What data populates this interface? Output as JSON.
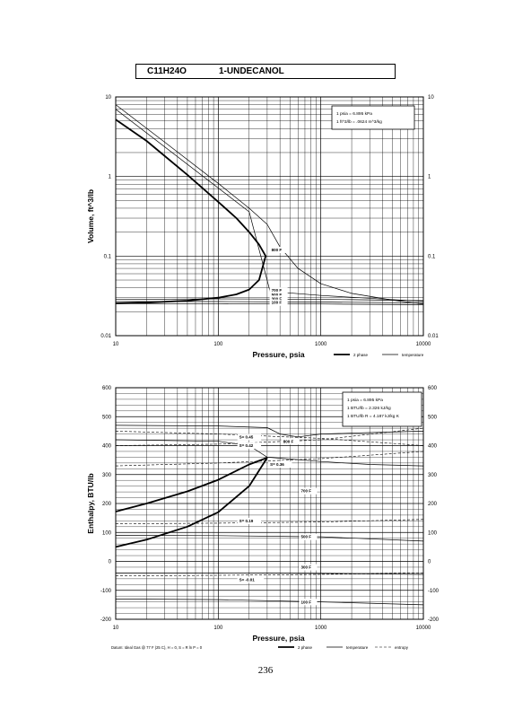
{
  "header": {
    "formula": "C11H24O",
    "name": "1-UNDECANOL"
  },
  "page_number": "236",
  "chart_data": [
    {
      "type": "line",
      "xlabel": "Pressure,  psia",
      "ylabel": "Volume, ft^3/lb",
      "xscale": "log",
      "yscale": "log",
      "xlim": [
        10,
        10000
      ],
      "ylim": [
        0.01,
        10
      ],
      "x_ticks": [
        "10",
        "100",
        "1000",
        "10000"
      ],
      "y_ticks": [
        "0.01",
        "0.1",
        "1",
        "10"
      ],
      "y_ticks_right": [
        "0.01",
        "0.1",
        "1",
        "10"
      ],
      "grid": true,
      "legend": [
        {
          "label": "2 phase",
          "style": "thick"
        },
        {
          "label": "temperature",
          "style": "thin"
        }
      ],
      "conversions": [
        "1 psia  =  6.895 kPa",
        "1 ft^3/lb  =  .0624 m^3/kg"
      ],
      "series": [
        {
          "kind": "2 phase",
          "style": "thick",
          "role": "vapor",
          "x": [
            10,
            20,
            50,
            100,
            150,
            200,
            250,
            290
          ],
          "y": [
            5.2,
            2.8,
            1.05,
            0.48,
            0.3,
            0.2,
            0.14,
            0.1
          ]
        },
        {
          "kind": "2 phase",
          "style": "thick",
          "role": "liquid",
          "x": [
            10,
            20,
            50,
            100,
            150,
            200,
            250,
            290
          ],
          "y": [
            0.0255,
            0.026,
            0.0275,
            0.03,
            0.033,
            0.038,
            0.05,
            0.1
          ]
        },
        {
          "kind": "temperature",
          "label": "800 F",
          "style": "thin",
          "x": [
            10,
            30,
            100,
            200,
            300,
            400,
            600,
            1000,
            2000,
            5000,
            10000
          ],
          "y": [
            8,
            2.7,
            0.82,
            0.4,
            0.25,
            0.13,
            0.07,
            0.045,
            0.034,
            0.028,
            0.025
          ]
        },
        {
          "kind": "temperature",
          "label": "700 F",
          "style": "thin",
          "x": [
            10,
            200,
            320,
            1000,
            10000
          ],
          "y": [
            7,
            0.36,
            0.036,
            0.032,
            0.027
          ]
        },
        {
          "kind": "temperature",
          "label": "500 F",
          "style": "thin",
          "x": [
            10,
            100,
            500,
            2000,
            10000
          ],
          "y": [
            0.0285,
            0.029,
            0.0288,
            0.0283,
            0.0275
          ]
        },
        {
          "kind": "temperature",
          "label": "300 F",
          "style": "thin",
          "x": [
            10,
            100,
            1000,
            10000
          ],
          "y": [
            0.0268,
            0.0268,
            0.0265,
            0.0258
          ]
        },
        {
          "kind": "temperature",
          "label": "100 F",
          "style": "thin",
          "x": [
            10,
            100,
            1000,
            10000
          ],
          "y": [
            0.0253,
            0.0253,
            0.025,
            0.0245
          ]
        }
      ],
      "annotations": [
        {
          "text": "800 F",
          "x": 330,
          "y": 0.115
        },
        {
          "text": "700 F",
          "x": 330,
          "y": 0.0355
        },
        {
          "text": "500 F",
          "x": 330,
          "y": 0.0315
        },
        {
          "text": "300 F",
          "x": 330,
          "y": 0.028
        },
        {
          "text": "100 F",
          "x": 330,
          "y": 0.025
        }
      ]
    },
    {
      "type": "line",
      "xlabel": "Pressure,  psia",
      "ylabel": "Enthalpy, BTU/lb",
      "xscale": "log",
      "yscale": "linear",
      "xlim": [
        10,
        10000
      ],
      "ylim": [
        -200,
        600
      ],
      "x_ticks": [
        "10",
        "100",
        "1000",
        "10000"
      ],
      "y_ticks": [
        "-200",
        "-100",
        "0",
        "100",
        "200",
        "300",
        "400",
        "500",
        "600"
      ],
      "y_ticks_right": [
        "-200",
        "-100",
        "0",
        "100",
        "200",
        "300",
        "400",
        "500",
        "600"
      ],
      "grid": true,
      "legend": [
        {
          "label": "2 phase",
          "style": "thick"
        },
        {
          "label": "temperature",
          "style": "thin"
        },
        {
          "label": "entropy",
          "style": "dashed"
        }
      ],
      "conversions": [
        "1 psia  =  6.895 kPa",
        "1 BTU/lb  =  2.326 kJ/kg",
        "1 BTU/lb R  =  4.187 kJ/kg K"
      ],
      "footnote": "Datum: Ideal Gas @ 77 F (25 C), H = 0,  S = R ln P = 0",
      "series": [
        {
          "kind": "2 phase",
          "style": "thick",
          "role": "vapor",
          "x": [
            10,
            20,
            50,
            100,
            200,
            300
          ],
          "y": [
            172,
            200,
            242,
            282,
            335,
            358
          ]
        },
        {
          "kind": "2 phase",
          "style": "thick",
          "role": "liquid",
          "x": [
            10,
            20,
            50,
            100,
            200,
            300
          ],
          "y": [
            50,
            75,
            120,
            170,
            260,
            358
          ]
        },
        {
          "kind": "temperature",
          "label": "800 F",
          "style": "thin",
          "x": [
            10,
            100,
            300,
            400,
            600,
            1000,
            3000,
            10000
          ],
          "y": [
            470,
            468,
            462,
            440,
            430,
            440,
            445,
            450
          ]
        },
        {
          "kind": "temperature",
          "label": "700 F",
          "style": "thin",
          "x": [
            10,
            100,
            200,
            300,
            1000,
            3000,
            10000
          ],
          "y": [
            420,
            415,
            400,
            360,
            345,
            335,
            330
          ]
        },
        {
          "kind": "temperature",
          "label": "500 F",
          "style": "thin",
          "x": [
            10,
            100,
            1000,
            10000
          ],
          "y": [
            90,
            89,
            85,
            70
          ]
        },
        {
          "kind": "temperature",
          "label": "300 F",
          "style": "thin",
          "x": [
            10,
            100,
            1000,
            10000
          ],
          "y": [
            -40,
            -40,
            -42,
            -45
          ]
        },
        {
          "kind": "temperature",
          "label": "100 F",
          "style": "thin",
          "x": [
            10,
            100,
            1000,
            10000
          ],
          "y": [
            -130,
            -132,
            -140,
            -150
          ]
        },
        {
          "kind": "entropy",
          "label": "S= 0.45",
          "style": "dashed",
          "x": [
            10,
            100,
            1000,
            10000
          ],
          "y": [
            450,
            440,
            425,
            400
          ]
        },
        {
          "kind": "entropy",
          "label": "S= 0.42",
          "style": "dashed",
          "x": [
            10,
            100,
            1000,
            10000
          ],
          "y": [
            400,
            405,
            420,
            460
          ]
        },
        {
          "kind": "entropy",
          "label": "S= 0.36",
          "style": "dashed",
          "x": [
            10,
            100,
            1000,
            10000
          ],
          "y": [
            330,
            340,
            355,
            380
          ]
        },
        {
          "kind": "entropy",
          "label": "S= 0.19",
          "style": "dashed",
          "x": [
            10,
            100,
            1000,
            10000
          ],
          "y": [
            130,
            132,
            136,
            145
          ]
        },
        {
          "kind": "entropy",
          "label": "S= -0.01",
          "style": "dashed",
          "x": [
            10,
            100,
            1000,
            10000
          ],
          "y": [
            -50,
            -48,
            -45,
            -40
          ]
        }
      ],
      "annotations": [
        {
          "text": "S= 0.45",
          "x": 160,
          "y": 425
        },
        {
          "text": "800 F",
          "x": 430,
          "y": 410
        },
        {
          "text": "S= 0.42",
          "x": 160,
          "y": 395
        },
        {
          "text": "S= 0.36",
          "x": 320,
          "y": 330
        },
        {
          "text": "700 F",
          "x": 640,
          "y": 238
        },
        {
          "text": "S= 0.19",
          "x": 160,
          "y": 135
        },
        {
          "text": "500 F",
          "x": 640,
          "y": 80
        },
        {
          "text": "300 F",
          "x": 640,
          "y": -25
        },
        {
          "text": "S= -0.01",
          "x": 160,
          "y": -68
        },
        {
          "text": "100 F",
          "x": 640,
          "y": -145
        }
      ]
    }
  ]
}
